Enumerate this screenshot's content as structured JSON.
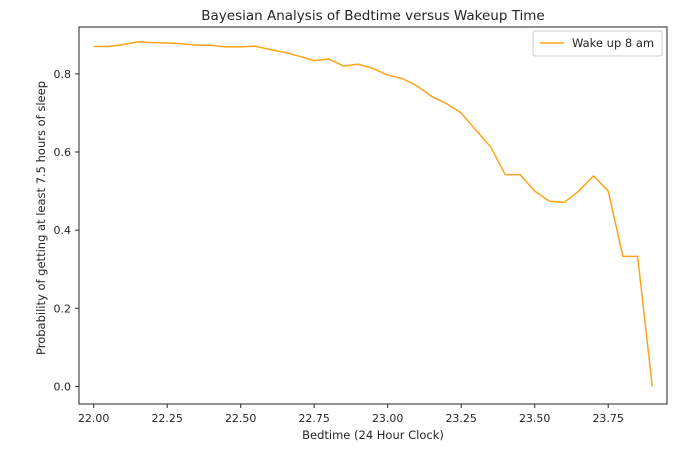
{
  "chart_data": {
    "type": "line",
    "title": "Bayesian Analysis of Bedtime versus Wakeup Time",
    "xlabel": "Bedtime (24 Hour Clock)",
    "ylabel": "Probability of getting at least 7.5 hours of sleep",
    "xlim": [
      21.95,
      23.95
    ],
    "ylim": [
      -0.045,
      0.92
    ],
    "xticks": [
      22.0,
      22.25,
      22.5,
      22.75,
      23.0,
      23.25,
      23.5,
      23.75
    ],
    "xtick_labels": [
      "22.00",
      "22.25",
      "22.50",
      "22.75",
      "23.00",
      "23.25",
      "23.50",
      "23.75"
    ],
    "yticks": [
      0.0,
      0.2,
      0.4,
      0.6,
      0.8
    ],
    "ytick_labels": [
      "0.0",
      "0.2",
      "0.4",
      "0.6",
      "0.8"
    ],
    "grid": false,
    "legend_position": "top-right",
    "series": [
      {
        "name": "Wake up 8 am",
        "color": "#ffa31a",
        "x": [
          22.0,
          22.05,
          22.1,
          22.15,
          22.2,
          22.25,
          22.3,
          22.35,
          22.4,
          22.45,
          22.5,
          22.55,
          22.6,
          22.65,
          22.7,
          22.75,
          22.8,
          22.85,
          22.9,
          22.95,
          23.0,
          23.05,
          23.1,
          23.15,
          23.2,
          23.25,
          23.3,
          23.35,
          23.4,
          23.45,
          23.5,
          23.55,
          23.6,
          23.65,
          23.7,
          23.75,
          23.8,
          23.85,
          23.9
        ],
        "y": [
          0.87,
          0.87,
          0.875,
          0.882,
          0.88,
          0.879,
          0.877,
          0.874,
          0.873,
          0.869,
          0.869,
          0.871,
          0.862,
          0.855,
          0.845,
          0.834,
          0.838,
          0.82,
          0.825,
          0.814,
          0.797,
          0.788,
          0.769,
          0.742,
          0.724,
          0.7,
          0.656,
          0.613,
          0.542,
          0.542,
          0.5,
          0.474,
          0.471,
          0.5,
          0.539,
          0.5,
          0.333,
          0.333,
          0.0
        ]
      }
    ]
  }
}
